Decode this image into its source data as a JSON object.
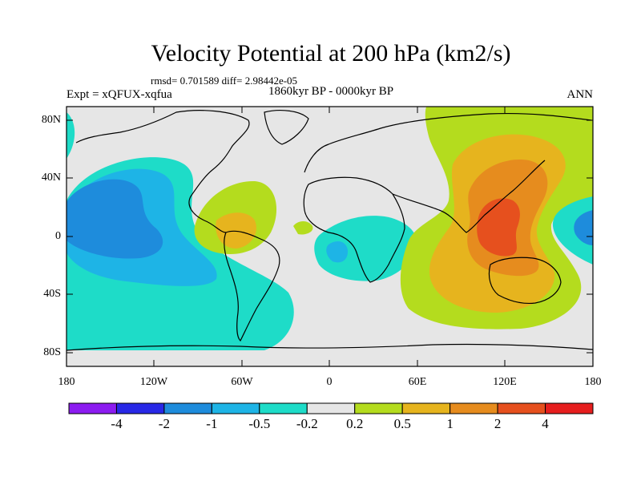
{
  "title": "Velocity Potential at 200 hPa (km2/s)",
  "stats": "rmsd= 0.701589 diff= 2.98442e-05",
  "experiment": "Expt = xQFUX-xqfua",
  "period": "1860kyr BP - 0000kyr BP",
  "season": "ANN",
  "map": {
    "lat_labels": [
      "80N",
      "40N",
      "0",
      "40S",
      "80S"
    ],
    "lon_labels": [
      "180",
      "120W",
      "60W",
      "0",
      "60E",
      "120E",
      "180"
    ]
  },
  "colorbar": {
    "colors": [
      "#8c1cf0",
      "#2828e6",
      "#1e8cdc",
      "#1eb4e6",
      "#1edcc8",
      "#e6e6e6",
      "#b4dc1e",
      "#e6b41e",
      "#e68c1e",
      "#e6501e",
      "#e61e1e"
    ],
    "labels": [
      "-4",
      "-2",
      "-1",
      "-0.5",
      "-0.2",
      "0.2",
      "0.5",
      "1",
      "2",
      "4"
    ]
  }
}
